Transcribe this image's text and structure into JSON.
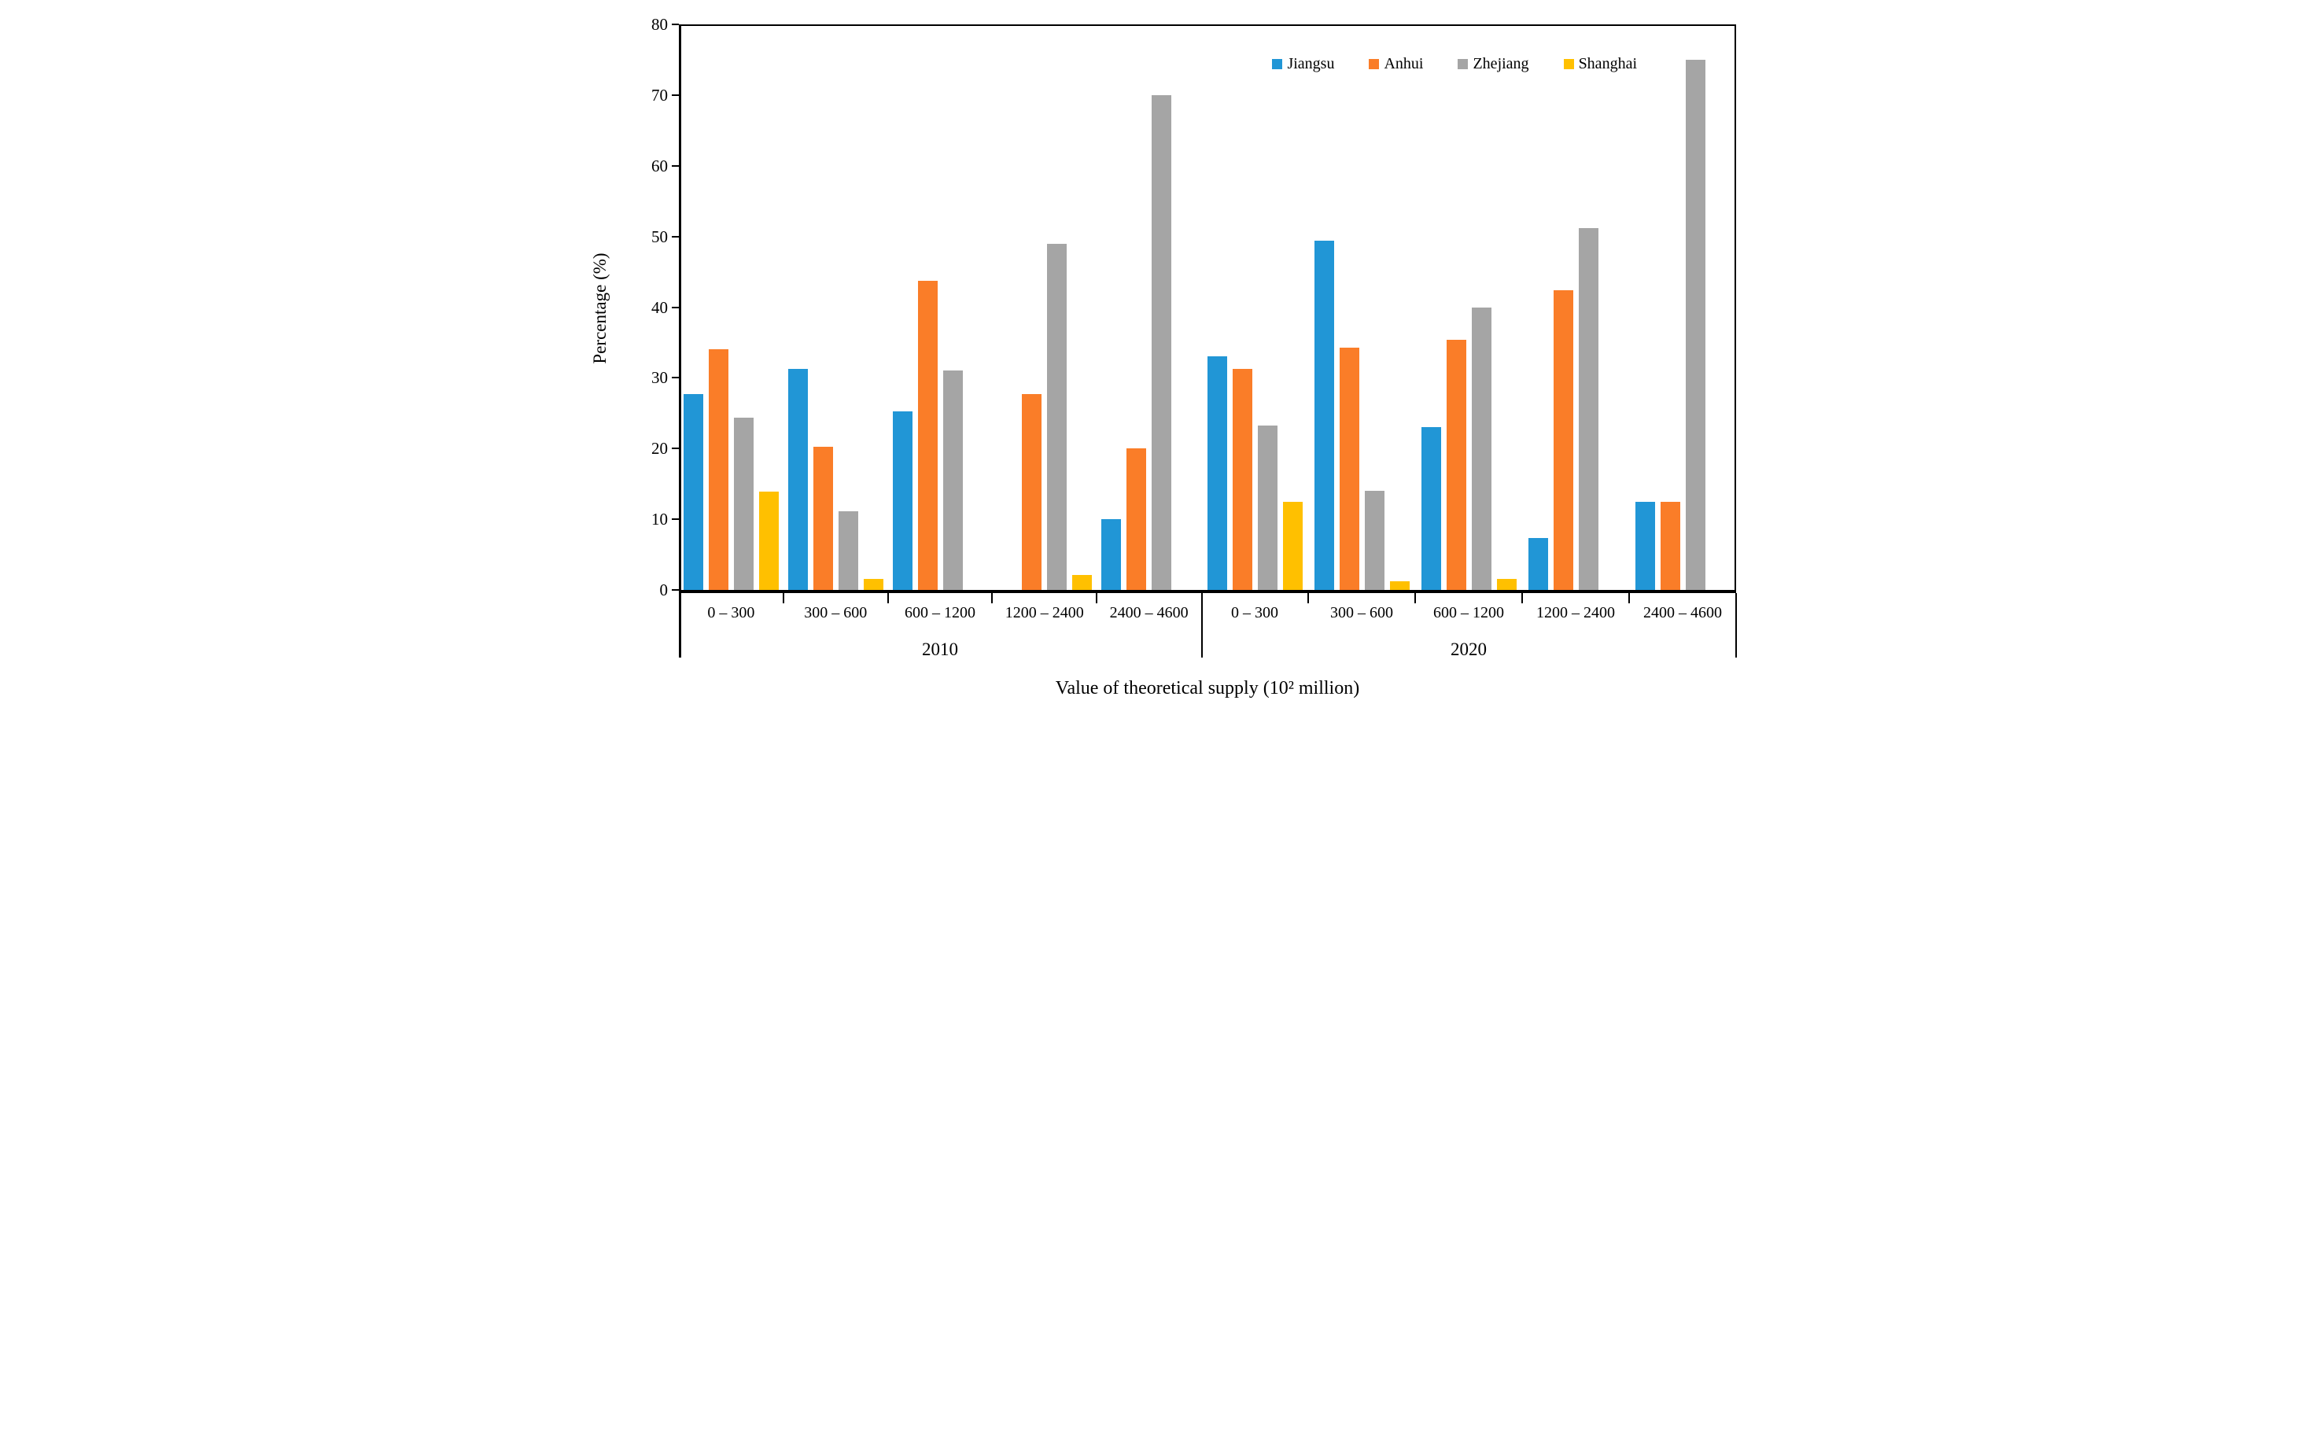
{
  "figure_name": "Grouped bar chart of percentage by value of theoretical supply, 2010 vs 2020",
  "chart_data": {
    "type": "bar",
    "title": "",
    "xlabel": "Value of theoretical supply (10² million)",
    "ylabel": "Percentage (%)",
    "ylim": [
      0,
      80
    ],
    "yticks": [
      0,
      10,
      20,
      30,
      40,
      50,
      60,
      70,
      80
    ],
    "grid": false,
    "legend_position": "top-right-inside",
    "group_labels": [
      "2010",
      "2020"
    ],
    "categories": [
      "0 – 300",
      "300 – 600",
      "600 – 1200",
      "1200 – 2400",
      "2400 – 4600"
    ],
    "series": [
      {
        "name": "Jiangsu",
        "color": "#2196D6",
        "values": {
          "2010": [
            27.7,
            31.3,
            25.3,
            0,
            10.0
          ],
          "2020": [
            33.0,
            49.4,
            23.0,
            7.3,
            12.5
          ]
        }
      },
      {
        "name": "Anhui",
        "color": "#FA7D28",
        "values": {
          "2010": [
            34.1,
            20.3,
            43.7,
            27.7,
            20.0
          ],
          "2020": [
            31.3,
            34.3,
            35.4,
            42.4,
            12.5
          ]
        }
      },
      {
        "name": "Zhejiang",
        "color": "#A5A5A5",
        "values": {
          "2010": [
            24.4,
            11.1,
            31.0,
            49.0,
            70.0
          ],
          "2020": [
            23.2,
            14.0,
            40.0,
            51.2,
            75.0
          ]
        }
      },
      {
        "name": "Shanghai",
        "color": "#FFC000",
        "values": {
          "2010": [
            13.9,
            1.6,
            0,
            2.1,
            0
          ],
          "2020": [
            12.5,
            1.2,
            1.6,
            0,
            0
          ]
        }
      }
    ]
  }
}
